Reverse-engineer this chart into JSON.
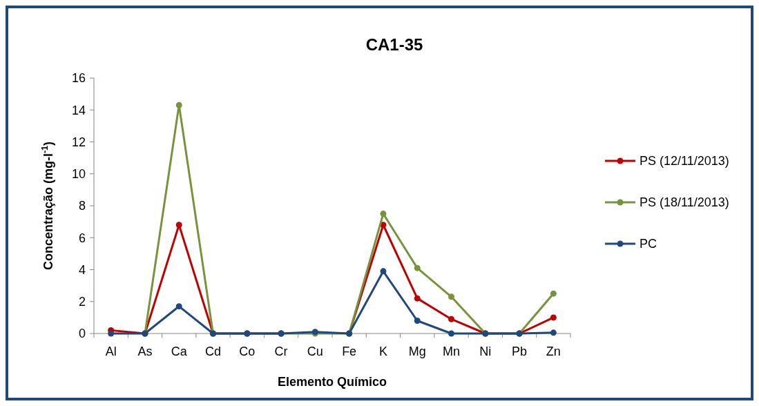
{
  "chart_data": {
    "type": "line",
    "title": "CA1-35",
    "xlabel": "Elemento Químico",
    "ylabel": "Concentração (mg-l$^{-1}$)",
    "categories": [
      "Al",
      "As",
      "Ca",
      "Cd",
      "Co",
      "Cr",
      "Cu",
      "Fe",
      "K",
      "Mg",
      "Mn",
      "Ni",
      "Pb",
      "Zn"
    ],
    "series": [
      {
        "name": "PS (12/11/2013)",
        "color": "#c00000",
        "values": [
          0.2,
          0,
          6.8,
          0,
          0,
          0,
          null,
          0,
          6.8,
          2.2,
          0.9,
          0,
          0,
          1.0
        ]
      },
      {
        "name": "PS (18/11/2013)",
        "color": "#77933c",
        "values": [
          null,
          0,
          14.3,
          0,
          0,
          0,
          0,
          0,
          7.5,
          4.1,
          2.3,
          0,
          0,
          2.5
        ]
      },
      {
        "name": "PC",
        "color": "#1f497d",
        "values": [
          0,
          0,
          1.7,
          0,
          0,
          0,
          0.1,
          0,
          3.9,
          0.8,
          0,
          0,
          0,
          0.05
        ]
      }
    ],
    "ylim": [
      0,
      16
    ],
    "yticks": [
      0,
      2,
      4,
      6,
      8,
      10,
      12,
      14,
      16
    ],
    "grid": false,
    "legend": "right",
    "marker": "circle",
    "line_style": "solid"
  }
}
